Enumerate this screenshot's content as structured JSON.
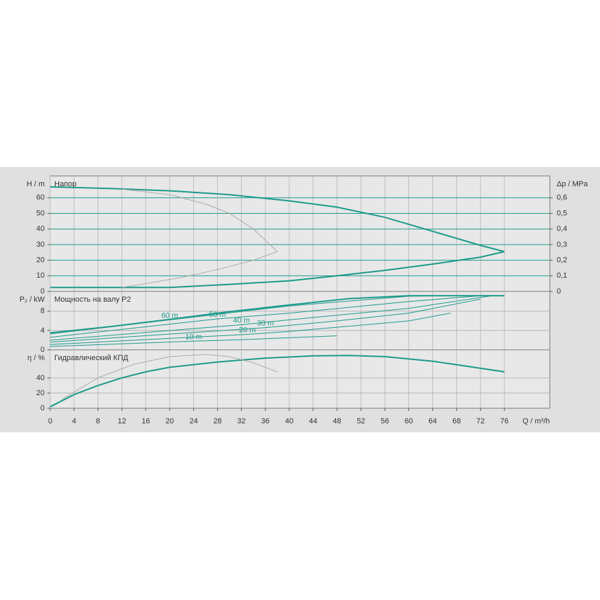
{
  "chart_data": [
    {
      "type": "line",
      "title": "Напор",
      "ylabel": "H / m",
      "y2label": "Δp / MPa",
      "grid_color": "#1a9a8a",
      "xlim": [
        0,
        83.6
      ],
      "ylim": [
        0,
        74
      ],
      "yticks": [
        0,
        10,
        20,
        30,
        40,
        50,
        60
      ],
      "y2lim": [
        0,
        0.74
      ],
      "y2ticks": [
        0,
        {
          "value": 0.1,
          "label": "0,1"
        },
        {
          "value": 0.2,
          "label": "0,2"
        },
        {
          "value": 0.3,
          "label": "0,3"
        },
        {
          "value": 0.4,
          "label": "0,4"
        },
        {
          "value": 0.5,
          "label": "0,5"
        },
        {
          "value": 0.6,
          "label": "0,6"
        }
      ],
      "series": [
        {
          "color": "#1a9a8a",
          "width": 2,
          "x": [
            0,
            10,
            20,
            30,
            40,
            48,
            56,
            64,
            72,
            76
          ],
          "values": [
            67,
            66,
            64.5,
            62,
            58,
            54,
            47.5,
            38.5,
            29.5,
            25.5
          ]
        },
        {
          "color": "#1a9a8a",
          "width": 2,
          "x": [
            0,
            20,
            30,
            40,
            48,
            56,
            64,
            72,
            76
          ],
          "values": [
            2.5,
            2.5,
            4.5,
            6.8,
            10,
            13.5,
            17.5,
            22,
            25.5
          ]
        },
        {
          "color": "#aaaaaa",
          "width": 1,
          "x": [
            12,
            20,
            26,
            30,
            34,
            38,
            34,
            28,
            22,
            16,
            12
          ],
          "values": [
            65.5,
            62,
            56,
            50,
            40,
            25.5,
            20,
            14,
            9,
            5,
            2.5
          ]
        }
      ]
    },
    {
      "type": "line",
      "title": "Мощность на валу P2",
      "ylabel": "P₂ / kW",
      "grid_color": "#b5b5b5",
      "xlim": [
        0,
        83.6
      ],
      "ylim": [
        0,
        12.1
      ],
      "yticks": [
        0,
        4,
        8
      ],
      "series": [
        {
          "color": "#1a9a8a",
          "width": 2,
          "x": [
            0,
            10,
            20,
            30,
            40,
            50,
            60,
            64,
            76
          ],
          "values": [
            3.5,
            4.8,
            6.3,
            7.9,
            9.3,
            10.6,
            11.2,
            11.2,
            11.2
          ]
        },
        {
          "color": "#1a9a8a",
          "width": 1,
          "label": "60 m",
          "x": [
            0,
            20,
            40,
            60,
            65
          ],
          "values": [
            3.3,
            6.2,
            9.1,
            11.1,
            11.2
          ]
        },
        {
          "color": "#1a9a8a",
          "width": 1,
          "label": "50 m",
          "x": [
            0,
            28,
            40,
            60,
            72
          ],
          "values": [
            2.6,
            6.4,
            7.6,
            10,
            11.2
          ]
        },
        {
          "color": "#1a9a8a",
          "width": 1,
          "label": "40 m",
          "x": [
            0,
            32,
            40,
            60,
            74
          ],
          "values": [
            2,
            5.2,
            6.2,
            8.6,
            11.2
          ]
        },
        {
          "color": "#1a9a8a",
          "width": 1,
          "label": "30 m",
          "x": [
            0,
            36,
            48,
            60,
            72
          ],
          "values": [
            1.6,
            4.6,
            6,
            7.6,
            10.5
          ]
        },
        {
          "color": "#1a9a8a",
          "width": 1,
          "label": "20 m",
          "x": [
            0,
            33,
            40,
            60,
            67
          ],
          "values": [
            1.1,
            3.2,
            3.8,
            6,
            7.6
          ]
        },
        {
          "color": "#1a9a8a",
          "width": 1,
          "label": "10 m",
          "x": [
            0,
            24,
            32,
            48
          ],
          "values": [
            0.7,
            1.8,
            2.1,
            2.9
          ]
        }
      ]
    },
    {
      "type": "line",
      "title": "Гидравлический КПД",
      "ylabel": "η / %",
      "xlabel": "Q / m³/h",
      "grid_color": "#b5b5b5",
      "xlim": [
        0,
        83.6
      ],
      "ylim": [
        0,
        77
      ],
      "yticks": [
        0,
        20,
        40
      ],
      "xticks": [
        0,
        4,
        8,
        12,
        16,
        20,
        24,
        28,
        32,
        36,
        40,
        44,
        48,
        52,
        56,
        60,
        64,
        68,
        72,
        76
      ],
      "series": [
        {
          "color": "#1a9a8a",
          "width": 2,
          "x": [
            0,
            4,
            8,
            12,
            16,
            20,
            28,
            36,
            44,
            50,
            56,
            64,
            70,
            76
          ],
          "values": [
            2,
            18,
            30,
            40,
            48,
            54,
            61,
            66,
            69,
            69.5,
            68,
            62,
            55,
            48
          ]
        },
        {
          "color": "#aaaaaa",
          "width": 1,
          "x": [
            2,
            8,
            14,
            20,
            26,
            30,
            34,
            38
          ],
          "values": [
            12,
            40,
            58,
            68,
            71,
            68,
            60,
            48
          ]
        }
      ]
    }
  ]
}
